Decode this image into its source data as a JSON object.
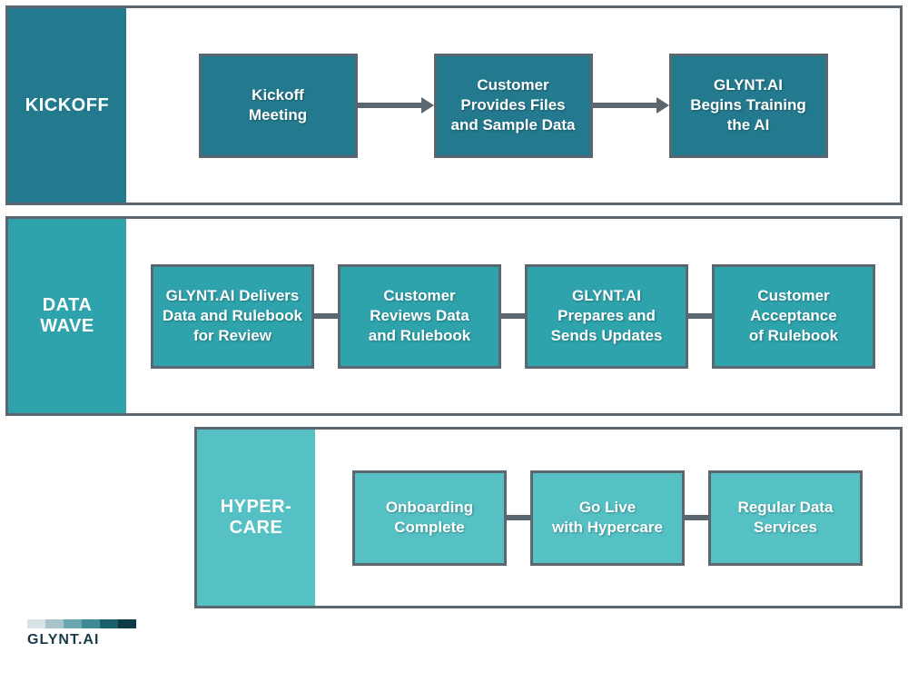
{
  "layout": {
    "border_color": "#5b6770",
    "arrow_color": "#5b6770",
    "connector_line_height": 6
  },
  "phases": [
    {
      "id": "kickoff",
      "label": "KICKOFF",
      "label_bg": "#237a8e",
      "step_bg": "#237a8e",
      "step_border": "#5b6770",
      "row_width": "full",
      "step_width": 175,
      "step_height": 115,
      "connector_width": 70,
      "connector_style": "arrow",
      "steps": [
        "Kickoff\nMeeting",
        "Customer\nProvides Files\nand Sample Data",
        "GLYNT.AI\nBegins Training\nthe AI"
      ]
    },
    {
      "id": "datawave",
      "label": "DATA\nWAVE",
      "label_bg": "#2ea3ac",
      "step_bg": "#2ea3ac",
      "step_border": "#5b6770",
      "row_width": "full",
      "step_width": 180,
      "step_height": 115,
      "connector_width": 26,
      "connector_style": "bar",
      "steps": [
        "GLYNT.AI Delivers\nData and Rulebook\nfor Review",
        "Customer\nReviews Data\nand Rulebook",
        "GLYNT.AI\nPrepares and\nSends Updates",
        "Customer\nAcceptance\nof Rulebook"
      ]
    },
    {
      "id": "hypercare",
      "label": "HYPER-\nCARE",
      "label_bg": "#55c1c4",
      "step_bg": "#55c1c4",
      "step_border": "#5b6770",
      "row_width": "partial",
      "step_width": 170,
      "step_height": 105,
      "connector_width": 26,
      "connector_style": "bar",
      "steps": [
        "Onboarding\nComplete",
        "Go Live\nwith Hypercare",
        "Regular Data\nServices"
      ]
    }
  ],
  "logo": {
    "gradient": [
      "#d9e2e5",
      "#a7c4cb",
      "#6ba7b0",
      "#3e8a97",
      "#1a5f6e",
      "#0d3a44"
    ],
    "text": "GLYNT.AI"
  }
}
